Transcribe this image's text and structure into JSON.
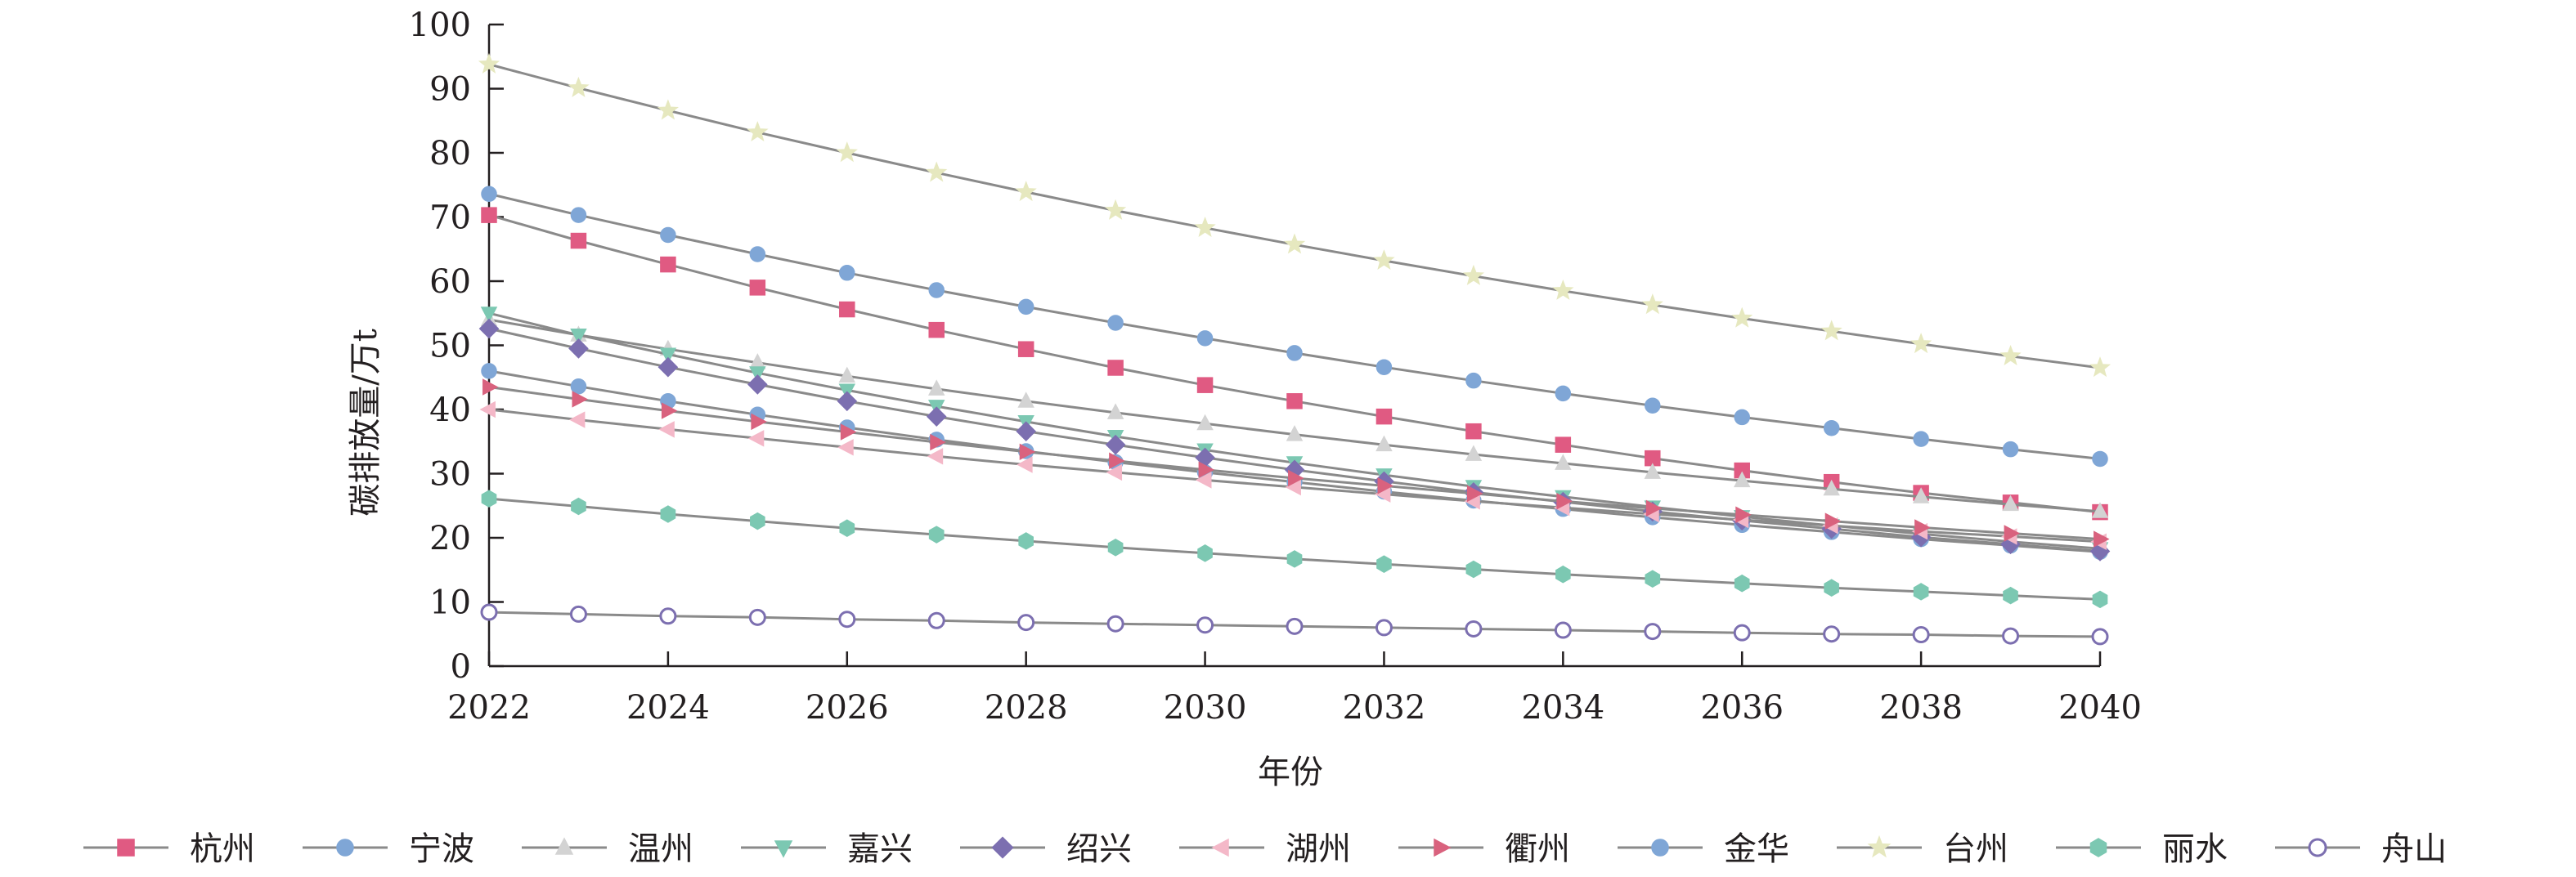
{
  "chart_data": {
    "type": "line",
    "title": "",
    "xlabel": "年份",
    "ylabel": "碳排放量/万t",
    "xlim": [
      2022,
      2040
    ],
    "ylim": [
      0,
      100
    ],
    "x_ticks": [
      "2022",
      "2024",
      "2026",
      "2028",
      "2030",
      "2032",
      "2034",
      "2036",
      "2038",
      "2040"
    ],
    "y_ticks": [
      "0",
      "10",
      "20",
      "30",
      "40",
      "50",
      "60",
      "70",
      "80",
      "90",
      "100"
    ],
    "grid": false,
    "legend_position": "bottom",
    "x": [
      2022,
      2023,
      2024,
      2025,
      2026,
      2027,
      2028,
      2029,
      2030,
      2031,
      2032,
      2033,
      2034,
      2035,
      2036,
      2037,
      2038,
      2039,
      2040
    ],
    "series": [
      {
        "name": "杭州",
        "color": "#e05a82",
        "marker": "square",
        "values": [
          70.3,
          66.3,
          62.6,
          59.0,
          55.6,
          52.4,
          49.4,
          46.5,
          43.8,
          41.3,
          38.9,
          36.6,
          34.5,
          32.4,
          30.5,
          28.7,
          27.0,
          25.5,
          24.0
        ]
      },
      {
        "name": "宁波",
        "color": "#7fa6d6",
        "marker": "circle",
        "values": [
          46.0,
          43.6,
          41.3,
          39.2,
          37.2,
          35.3,
          33.5,
          31.8,
          30.2,
          28.7,
          27.2,
          25.8,
          24.5,
          23.2,
          22.0,
          20.9,
          19.8,
          18.8,
          17.8
        ]
      },
      {
        "name": "温州",
        "color": "#d3d3d3",
        "marker": "triangle",
        "values": [
          54.0,
          51.6,
          49.4,
          47.3,
          45.2,
          43.2,
          41.3,
          39.5,
          37.8,
          36.1,
          34.5,
          33.0,
          31.6,
          30.2,
          28.9,
          27.6,
          26.4,
          25.2,
          24.1
        ]
      },
      {
        "name": "嘉兴",
        "color": "#7cc8b2",
        "marker": "triangle-down",
        "values": [
          55.0,
          51.6,
          48.6,
          45.7,
          43.0,
          40.5,
          38.1,
          35.8,
          33.7,
          31.7,
          29.8,
          28.0,
          26.4,
          24.8,
          23.3,
          21.9,
          20.6,
          19.4,
          18.3
        ]
      },
      {
        "name": "绍兴",
        "color": "#7c6fb0",
        "marker": "diamond",
        "values": [
          52.6,
          49.5,
          46.6,
          43.9,
          41.3,
          38.9,
          36.6,
          34.5,
          32.5,
          30.6,
          28.8,
          27.1,
          25.6,
          24.1,
          22.7,
          21.4,
          20.1,
          19.0,
          17.9
        ]
      },
      {
        "name": "湖州",
        "color": "#f4b8c8",
        "marker": "triangle-left",
        "values": [
          40.0,
          38.4,
          36.9,
          35.5,
          34.1,
          32.7,
          31.4,
          30.2,
          29.0,
          27.9,
          26.8,
          25.7,
          24.7,
          23.7,
          22.8,
          21.9,
          21.0,
          20.2,
          19.4
        ]
      },
      {
        "name": "衢州",
        "color": "#d9627e",
        "marker": "triangle-right",
        "values": [
          43.5,
          41.6,
          39.8,
          38.1,
          36.5,
          34.9,
          33.4,
          32.0,
          30.6,
          29.3,
          28.1,
          26.9,
          25.7,
          24.6,
          23.6,
          22.6,
          21.6,
          20.7,
          19.8
        ]
      },
      {
        "name": "金华",
        "color": "#7fa6d6",
        "marker": "circle",
        "values": [
          73.6,
          70.3,
          67.2,
          64.2,
          61.3,
          58.6,
          56.0,
          53.5,
          51.1,
          48.8,
          46.6,
          44.5,
          42.5,
          40.6,
          38.8,
          37.1,
          35.4,
          33.8,
          32.3
        ]
      },
      {
        "name": "台州",
        "color": "#e6e8bf",
        "marker": "star",
        "values": [
          93.8,
          90.1,
          86.6,
          83.2,
          80.0,
          76.9,
          73.9,
          71.0,
          68.3,
          65.7,
          63.2,
          60.8,
          58.5,
          56.3,
          54.2,
          52.2,
          50.2,
          48.3,
          46.5
        ]
      },
      {
        "name": "丽水",
        "color": "#7cc8b2",
        "marker": "hexagon",
        "values": [
          26.1,
          24.9,
          23.7,
          22.6,
          21.5,
          20.5,
          19.5,
          18.5,
          17.6,
          16.7,
          15.9,
          15.1,
          14.3,
          13.6,
          12.9,
          12.2,
          11.6,
          11.0,
          10.4
        ]
      },
      {
        "name": "舟山",
        "color": "#7c6fb0",
        "marker": "ring",
        "values": [
          8.4,
          8.1,
          7.8,
          7.6,
          7.3,
          7.1,
          6.8,
          6.6,
          6.4,
          6.2,
          6.0,
          5.8,
          5.6,
          5.4,
          5.2,
          5.0,
          4.9,
          4.7,
          4.6
        ]
      }
    ]
  }
}
